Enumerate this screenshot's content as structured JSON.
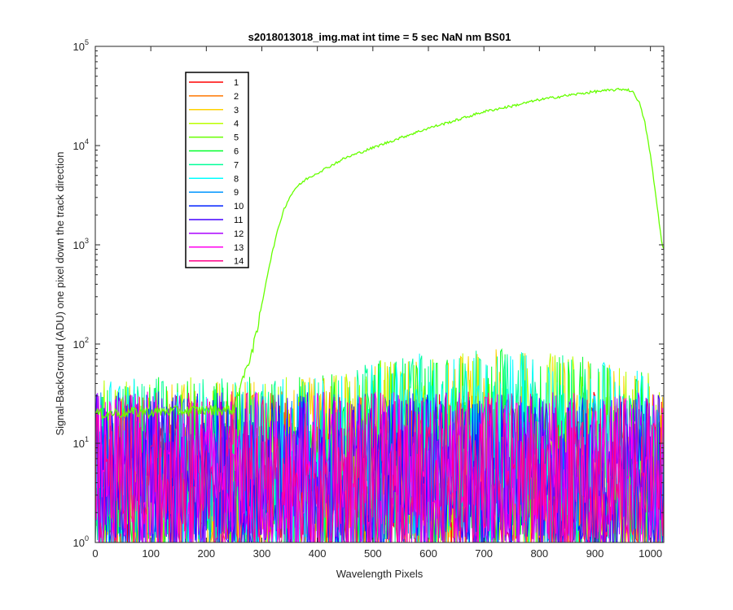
{
  "chart_data": {
    "type": "line",
    "title": "s2018013018_img.mat int time = 5 sec  NaN nm BS01",
    "xlabel": "Wavelength Pixels",
    "ylabel": "Signal-BackGround (ADU) one pixel down the track direction",
    "xlim": [
      0,
      1024
    ],
    "ylim": [
      1,
      100000
    ],
    "yscale": "log",
    "grid": false,
    "legend_position": "top-left",
    "x_ticks": [
      "0",
      "100",
      "200",
      "300",
      "400",
      "500",
      "600",
      "700",
      "800",
      "900",
      "1000"
    ],
    "y_ticks": [
      {
        "base": "10",
        "exp": "0"
      },
      {
        "base": "10",
        "exp": "1"
      },
      {
        "base": "10",
        "exp": "2"
      },
      {
        "base": "10",
        "exp": "3"
      },
      {
        "base": "10",
        "exp": "4"
      },
      {
        "base": "10",
        "exp": "5"
      }
    ],
    "series": [
      {
        "name": "1",
        "color": "#ff0000"
      },
      {
        "name": "2",
        "color": "#ff7700"
      },
      {
        "name": "3",
        "color": "#ffd200"
      },
      {
        "name": "4",
        "color": "#bbff00"
      },
      {
        "name": "5",
        "color": "#66ff00",
        "signal": true,
        "x": [
          0,
          250,
          255,
          262,
          270,
          280,
          290,
          300,
          310,
          320,
          330,
          340,
          350,
          360,
          380,
          400,
          450,
          500,
          550,
          600,
          650,
          700,
          750,
          800,
          850,
          900,
          950,
          960,
          970,
          980,
          990,
          1000,
          1010,
          1020,
          1024
        ],
        "y": [
          20,
          22,
          30,
          40,
          50,
          80,
          120,
          250,
          500,
          900,
          1500,
          2300,
          3000,
          3700,
          4600,
          5300,
          7500,
          9500,
          12000,
          15000,
          18000,
          22000,
          25000,
          29000,
          32000,
          35000,
          37000,
          36500,
          34000,
          27000,
          17000,
          8000,
          3000,
          1100,
          900
        ]
      },
      {
        "name": "6",
        "color": "#00ff2a"
      },
      {
        "name": "7",
        "color": "#00ff99"
      },
      {
        "name": "8",
        "color": "#00ffff"
      },
      {
        "name": "9",
        "color": "#0095ff"
      },
      {
        "name": "10",
        "color": "#0022ff"
      },
      {
        "name": "11",
        "color": "#4400ff"
      },
      {
        "name": "12",
        "color": "#aa00ff"
      },
      {
        "name": "13",
        "color": "#ff00ee"
      },
      {
        "name": "14",
        "color": "#ff0088"
      }
    ]
  }
}
